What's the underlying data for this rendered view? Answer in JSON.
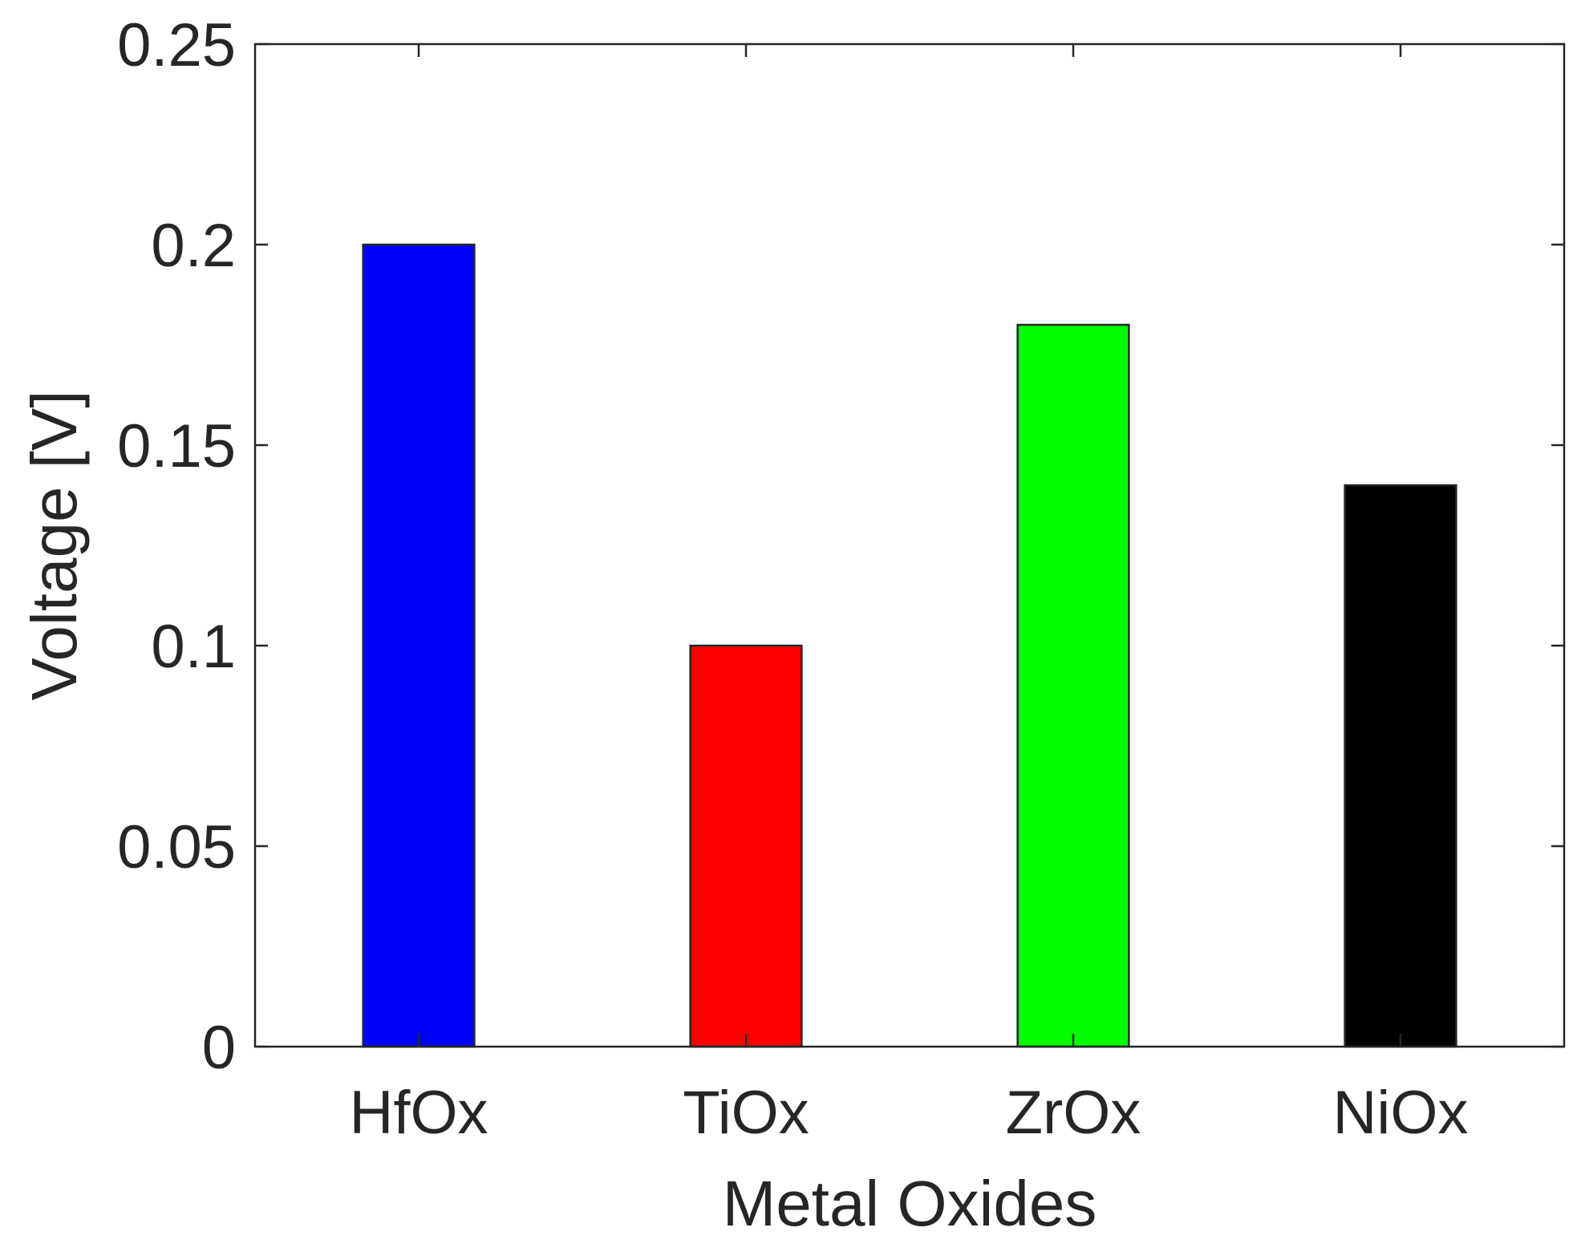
{
  "chart_data": {
    "type": "bar",
    "title": "",
    "xlabel": "Metal Oxides",
    "ylabel": "Voltage [V]",
    "categories": [
      "HfOx",
      "TiOx",
      "ZrOx",
      "NiOx"
    ],
    "values": [
      0.2,
      0.1,
      0.18,
      0.14
    ],
    "colors": [
      "#0000ff",
      "#ff0000",
      "#00ff00",
      "#000000"
    ],
    "ylim": [
      0,
      0.25
    ],
    "xlim": [
      0.5,
      4.5
    ],
    "yticks": [
      0,
      0.05,
      0.1,
      0.15,
      0.2,
      0.25
    ],
    "ytick_labels": [
      "0",
      "0.05",
      "0.1",
      "0.15",
      "0.2",
      "0.25"
    ],
    "grid": false,
    "legend": "none",
    "box": true
  }
}
